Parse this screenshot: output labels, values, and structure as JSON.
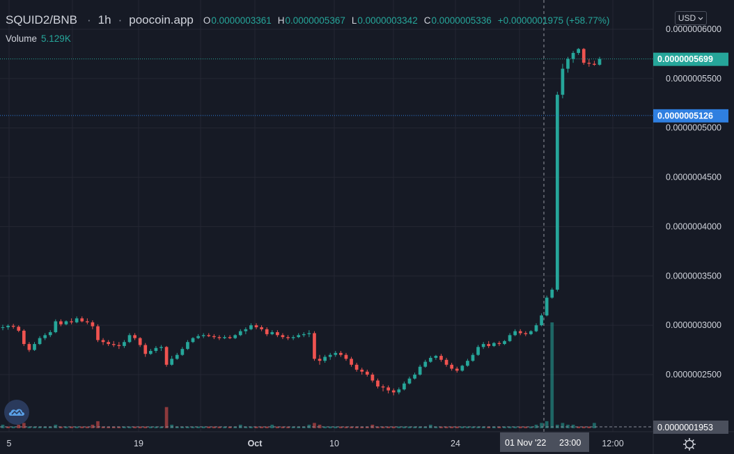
{
  "header": {
    "symbol": "SQUID2/BNB",
    "separator": "·",
    "timeframe": "1h",
    "source": "poocoin.app",
    "ohlc": [
      {
        "key": "O",
        "value": "0.0000003361"
      },
      {
        "key": "H",
        "value": "0.0000005367"
      },
      {
        "key": "L",
        "value": "0.0000003342"
      },
      {
        "key": "C",
        "value": "0.0000005336"
      }
    ],
    "change": "+0.0000001975 (+58.77%)",
    "volume_label": "Volume",
    "volume_value": "5.129K"
  },
  "currency_button": {
    "label": "USD",
    "icon": "chevron-down-icon"
  },
  "logo_icon": "tradingview-cloud-icon",
  "settings_icon": "gear-icon",
  "colors": {
    "background": "#161a25",
    "grid": "#242733",
    "up": "#26a69a",
    "down": "#ef5350",
    "axis_text": "#d1d4dc",
    "last_price_tag": "#26a69a",
    "crosshair_tag": "#2962ff"
  },
  "price_tags": {
    "last": "0.0000005699",
    "crosshair": "0.0000005126",
    "volume": "0.0000001953"
  },
  "time_tags": {
    "crosshair": "01 Nov '22",
    "crosshair_time": "23:00"
  },
  "chart_data": {
    "type": "candlestick",
    "y_axis": {
      "min": 1.953e-07,
      "max": 6e-07,
      "ticks": [
        "0.0000006000",
        "0.0000005500",
        "0.0000005000",
        "0.0000004500",
        "0.0000004000",
        "0.0000003500",
        "0.0000003000",
        "0.0000002500"
      ]
    },
    "x_axis": {
      "ticks": [
        "5",
        "19",
        "Oct",
        "10",
        "24",
        "12:00"
      ]
    },
    "grid": true,
    "candles": [
      [
        2.975e-07,
        3.005e-07,
        2.95e-07,
        2.98e-07
      ],
      [
        2.98e-07,
        3.01e-07,
        2.955e-07,
        2.995e-07
      ],
      [
        2.995e-07,
        3.015e-07,
        2.965e-07,
        2.985e-07
      ],
      [
        2.985e-07,
        3e-07,
        2.93e-07,
        2.945e-07
      ],
      [
        2.945e-07,
        2.96e-07,
        2.79e-07,
        2.81e-07
      ],
      [
        2.81e-07,
        2.83e-07,
        2.73e-07,
        2.75e-07
      ],
      [
        2.75e-07,
        2.83e-07,
        2.74e-07,
        2.81e-07
      ],
      [
        2.81e-07,
        2.89e-07,
        2.8e-07,
        2.87e-07
      ],
      [
        2.87e-07,
        2.92e-07,
        2.85e-07,
        2.9e-07
      ],
      [
        2.9e-07,
        2.95e-07,
        2.88e-07,
        2.93e-07
      ],
      [
        2.93e-07,
        3.06e-07,
        2.92e-07,
        3.04e-07
      ],
      [
        3.04e-07,
        3.06e-07,
        2.99e-07,
        3.01e-07
      ],
      [
        3.01e-07,
        3.05e-07,
        3e-07,
        3.04e-07
      ],
      [
        3.04e-07,
        3.07e-07,
        3.01e-07,
        3.03e-07
      ],
      [
        3.03e-07,
        3.09e-07,
        3.02e-07,
        3.07e-07
      ],
      [
        3.07e-07,
        3.09e-07,
        3.03e-07,
        3.04e-07
      ],
      [
        3.04e-07,
        3.07e-07,
        3.01e-07,
        3.03e-07
      ],
      [
        3.03e-07,
        3.05e-07,
        2.96e-07,
        2.99e-07
      ],
      [
        2.99e-07,
        3.01e-07,
        2.83e-07,
        2.85e-07
      ],
      [
        2.85e-07,
        2.87e-07,
        2.8e-07,
        2.83e-07
      ],
      [
        2.83e-07,
        2.85e-07,
        2.79e-07,
        2.81e-07
      ],
      [
        2.81e-07,
        2.84e-07,
        2.78e-07,
        2.8e-07
      ],
      [
        2.8e-07,
        2.83e-07,
        2.76e-07,
        2.79e-07
      ],
      [
        2.79e-07,
        2.85e-07,
        2.77e-07,
        2.83e-07
      ],
      [
        2.83e-07,
        2.92e-07,
        2.82e-07,
        2.9e-07
      ],
      [
        2.9e-07,
        2.92e-07,
        2.85e-07,
        2.87e-07
      ],
      [
        2.87e-07,
        2.88e-07,
        2.78e-07,
        2.8e-07
      ],
      [
        2.8e-07,
        2.82e-07,
        2.68e-07,
        2.71e-07
      ],
      [
        2.71e-07,
        2.76e-07,
        2.7e-07,
        2.74e-07
      ],
      [
        2.74e-07,
        2.79e-07,
        2.72e-07,
        2.77e-07
      ],
      [
        2.77e-07,
        2.8e-07,
        2.74e-07,
        2.78e-07
      ],
      [
        2.78e-07,
        2.79e-07,
        2.58e-07,
        2.6e-07
      ],
      [
        2.6e-07,
        2.69e-07,
        2.59e-07,
        2.66e-07
      ],
      [
        2.66e-07,
        2.72e-07,
        2.65e-07,
        2.7e-07
      ],
      [
        2.7e-07,
        2.78e-07,
        2.69e-07,
        2.76e-07
      ],
      [
        2.76e-07,
        2.85e-07,
        2.75e-07,
        2.83e-07
      ],
      [
        2.83e-07,
        2.88e-07,
        2.82e-07,
        2.87e-07
      ],
      [
        2.87e-07,
        2.91e-07,
        2.86e-07,
        2.89e-07
      ],
      [
        2.89e-07,
        2.92e-07,
        2.87e-07,
        2.9e-07
      ],
      [
        2.9e-07,
        2.92e-07,
        2.88e-07,
        2.89e-07
      ],
      [
        2.89e-07,
        2.91e-07,
        2.86e-07,
        2.88e-07
      ],
      [
        2.88e-07,
        2.9e-07,
        2.85e-07,
        2.87e-07
      ],
      [
        2.87e-07,
        2.9e-07,
        2.86e-07,
        2.88e-07
      ],
      [
        2.88e-07,
        2.9e-07,
        2.86e-07,
        2.87e-07
      ],
      [
        2.87e-07,
        2.91e-07,
        2.86e-07,
        2.9e-07
      ],
      [
        2.9e-07,
        2.96e-07,
        2.89e-07,
        2.94e-07
      ],
      [
        2.94e-07,
        2.98e-07,
        2.91e-07,
        2.96e-07
      ],
      [
        2.96e-07,
        3.02e-07,
        2.95e-07,
        3e-07
      ],
      [
        3e-07,
        3.02e-07,
        2.96e-07,
        2.98e-07
      ],
      [
        2.98e-07,
        3e-07,
        2.94e-07,
        2.96e-07
      ],
      [
        2.96e-07,
        2.98e-07,
        2.89e-07,
        2.91e-07
      ],
      [
        2.91e-07,
        2.95e-07,
        2.9e-07,
        2.93e-07
      ],
      [
        2.93e-07,
        2.95e-07,
        2.88e-07,
        2.9e-07
      ],
      [
        2.9e-07,
        2.92e-07,
        2.86e-07,
        2.88e-07
      ],
      [
        2.88e-07,
        2.9e-07,
        2.85e-07,
        2.87e-07
      ],
      [
        2.87e-07,
        2.9e-07,
        2.85e-07,
        2.88e-07
      ],
      [
        2.88e-07,
        2.92e-07,
        2.87e-07,
        2.9e-07
      ],
      [
        2.9e-07,
        2.93e-07,
        2.88e-07,
        2.91e-07
      ],
      [
        2.91e-07,
        2.95e-07,
        2.88e-07,
        2.92e-07
      ],
      [
        2.92e-07,
        2.94e-07,
        2.64e-07,
        2.66e-07
      ],
      [
        2.66e-07,
        2.7e-07,
        2.6e-07,
        2.64e-07
      ],
      [
        2.64e-07,
        2.7e-07,
        2.62e-07,
        2.68e-07
      ],
      [
        2.68e-07,
        2.72e-07,
        2.65e-07,
        2.7e-07
      ],
      [
        2.7e-07,
        2.74e-07,
        2.68e-07,
        2.72e-07
      ],
      [
        2.72e-07,
        2.74e-07,
        2.68e-07,
        2.7e-07
      ],
      [
        2.7e-07,
        2.72e-07,
        2.64e-07,
        2.66e-07
      ],
      [
        2.66e-07,
        2.68e-07,
        2.58e-07,
        2.6e-07
      ],
      [
        2.6e-07,
        2.62e-07,
        2.53e-07,
        2.55e-07
      ],
      [
        2.55e-07,
        2.57e-07,
        2.5e-07,
        2.53e-07
      ],
      [
        2.53e-07,
        2.55e-07,
        2.48e-07,
        2.5e-07
      ],
      [
        2.5e-07,
        2.52e-07,
        2.42e-07,
        2.44e-07
      ],
      [
        2.44e-07,
        2.46e-07,
        2.36e-07,
        2.38e-07
      ],
      [
        2.38e-07,
        2.4e-07,
        2.33e-07,
        2.37e-07
      ],
      [
        2.37e-07,
        2.39e-07,
        2.31e-07,
        2.34e-07
      ],
      [
        2.34e-07,
        2.36e-07,
        2.29e-07,
        2.32e-07
      ],
      [
        2.32e-07,
        2.37e-07,
        2.3e-07,
        2.35e-07
      ],
      [
        2.35e-07,
        2.43e-07,
        2.34e-07,
        2.41e-07
      ],
      [
        2.41e-07,
        2.48e-07,
        2.4e-07,
        2.46e-07
      ],
      [
        2.46e-07,
        2.52e-07,
        2.45e-07,
        2.5e-07
      ],
      [
        2.5e-07,
        2.6e-07,
        2.49e-07,
        2.58e-07
      ],
      [
        2.58e-07,
        2.65e-07,
        2.57e-07,
        2.63e-07
      ],
      [
        2.63e-07,
        2.69e-07,
        2.62e-07,
        2.67e-07
      ],
      [
        2.67e-07,
        2.7e-07,
        2.65e-07,
        2.69e-07
      ],
      [
        2.69e-07,
        2.71e-07,
        2.63e-07,
        2.65e-07
      ],
      [
        2.65e-07,
        2.67e-07,
        2.58e-07,
        2.6e-07
      ],
      [
        2.6e-07,
        2.62e-07,
        2.54e-07,
        2.56e-07
      ],
      [
        2.56e-07,
        2.58e-07,
        2.52e-07,
        2.54e-07
      ],
      [
        2.54e-07,
        2.6e-07,
        2.53e-07,
        2.59e-07
      ],
      [
        2.59e-07,
        2.66e-07,
        2.58e-07,
        2.64e-07
      ],
      [
        2.64e-07,
        2.72e-07,
        2.63e-07,
        2.7e-07
      ],
      [
        2.7e-07,
        2.8e-07,
        2.69e-07,
        2.78e-07
      ],
      [
        2.78e-07,
        2.83e-07,
        2.76e-07,
        2.81e-07
      ],
      [
        2.81e-07,
        2.84e-07,
        2.77e-07,
        2.79e-07
      ],
      [
        2.79e-07,
        2.83e-07,
        2.78e-07,
        2.82e-07
      ],
      [
        2.82e-07,
        2.84e-07,
        2.79e-07,
        2.81e-07
      ],
      [
        2.81e-07,
        2.85e-07,
        2.8e-07,
        2.84e-07
      ],
      [
        2.84e-07,
        2.92e-07,
        2.83e-07,
        2.9e-07
      ],
      [
        2.9e-07,
        2.96e-07,
        2.89e-07,
        2.94e-07
      ],
      [
        2.94e-07,
        2.96e-07,
        2.9e-07,
        2.92e-07
      ],
      [
        2.92e-07,
        2.94e-07,
        2.89e-07,
        2.91e-07
      ],
      [
        2.91e-07,
        2.95e-07,
        2.9e-07,
        2.94e-07
      ],
      [
        2.94e-07,
        3.02e-07,
        2.93e-07,
        3e-07
      ],
      [
        3e-07,
        3.12e-07,
        2.99e-07,
        3.1e-07
      ],
      [
        3.1e-07,
        3.3e-07,
        3.09e-07,
        3.28e-07
      ],
      [
        3.28e-07,
        3.38e-07,
        3.27e-07,
        3.361e-07
      ],
      [
        3.361e-07,
        5.367e-07,
        3.342e-07,
        5.336e-07
      ],
      [
        5.336e-07,
        5.65e-07,
        5.3e-07,
        5.6e-07
      ],
      [
        5.6e-07,
        5.72e-07,
        5.56e-07,
        5.7e-07
      ],
      [
        5.7e-07,
        5.78e-07,
        5.66e-07,
        5.76e-07
      ],
      [
        5.76e-07,
        5.81e-07,
        5.74e-07,
        5.8e-07
      ],
      [
        5.8e-07,
        5.81e-07,
        5.64e-07,
        5.66e-07
      ],
      [
        5.66e-07,
        5.7e-07,
        5.62e-07,
        5.65e-07
      ],
      [
        5.65e-07,
        5.68e-07,
        5.63e-07,
        5.64e-07
      ],
      [
        5.64e-07,
        5.72e-07,
        5.63e-07,
        5.699e-07
      ]
    ],
    "volumes": [
      2,
      1,
      1,
      2,
      3,
      1,
      1,
      1,
      1,
      1,
      2,
      1,
      1,
      1,
      1,
      1,
      1,
      2,
      4,
      1,
      1,
      1,
      1,
      1,
      1,
      1,
      1,
      1,
      1,
      1,
      1,
      12,
      2,
      1,
      1,
      1,
      1,
      1,
      1,
      1,
      1,
      1,
      1,
      1,
      1,
      2,
      1,
      1,
      1,
      1,
      1,
      2,
      1,
      1,
      1,
      1,
      1,
      1,
      2,
      3,
      2,
      1,
      1,
      1,
      1,
      1,
      1,
      1,
      1,
      1,
      2,
      1,
      1,
      1,
      1,
      1,
      1,
      1,
      1,
      1,
      1,
      2,
      1,
      1,
      1,
      1,
      1,
      1,
      1,
      1,
      1,
      1,
      1,
      1,
      1,
      1,
      1,
      1,
      1,
      1,
      1,
      2,
      3,
      4,
      60,
      2,
      3,
      2,
      2,
      1,
      1,
      1,
      3
    ],
    "volume_colors_up": [
      true,
      false,
      true,
      false,
      false,
      true,
      true,
      true,
      true,
      true,
      true,
      false,
      true,
      false,
      true,
      false,
      false,
      false,
      false,
      false,
      false,
      false,
      false,
      true,
      true,
      false,
      false,
      false,
      true,
      true,
      true,
      false,
      true,
      true,
      true,
      true,
      true,
      true,
      true,
      false,
      false,
      false,
      true,
      false,
      true,
      true,
      true,
      true,
      false,
      false,
      false,
      true,
      false,
      false,
      false,
      true,
      true,
      true,
      true,
      false,
      false,
      true,
      true,
      true,
      false,
      false,
      false,
      false,
      false,
      false,
      false,
      false,
      false,
      false,
      false,
      true,
      true,
      true,
      true,
      true,
      true,
      true,
      true,
      false,
      false,
      false,
      false,
      true,
      true,
      true,
      true,
      true,
      false,
      true,
      false,
      true,
      true,
      true,
      false,
      false,
      true,
      true,
      true,
      true,
      true,
      true,
      true,
      true,
      true,
      false,
      false,
      false,
      true
    ]
  }
}
